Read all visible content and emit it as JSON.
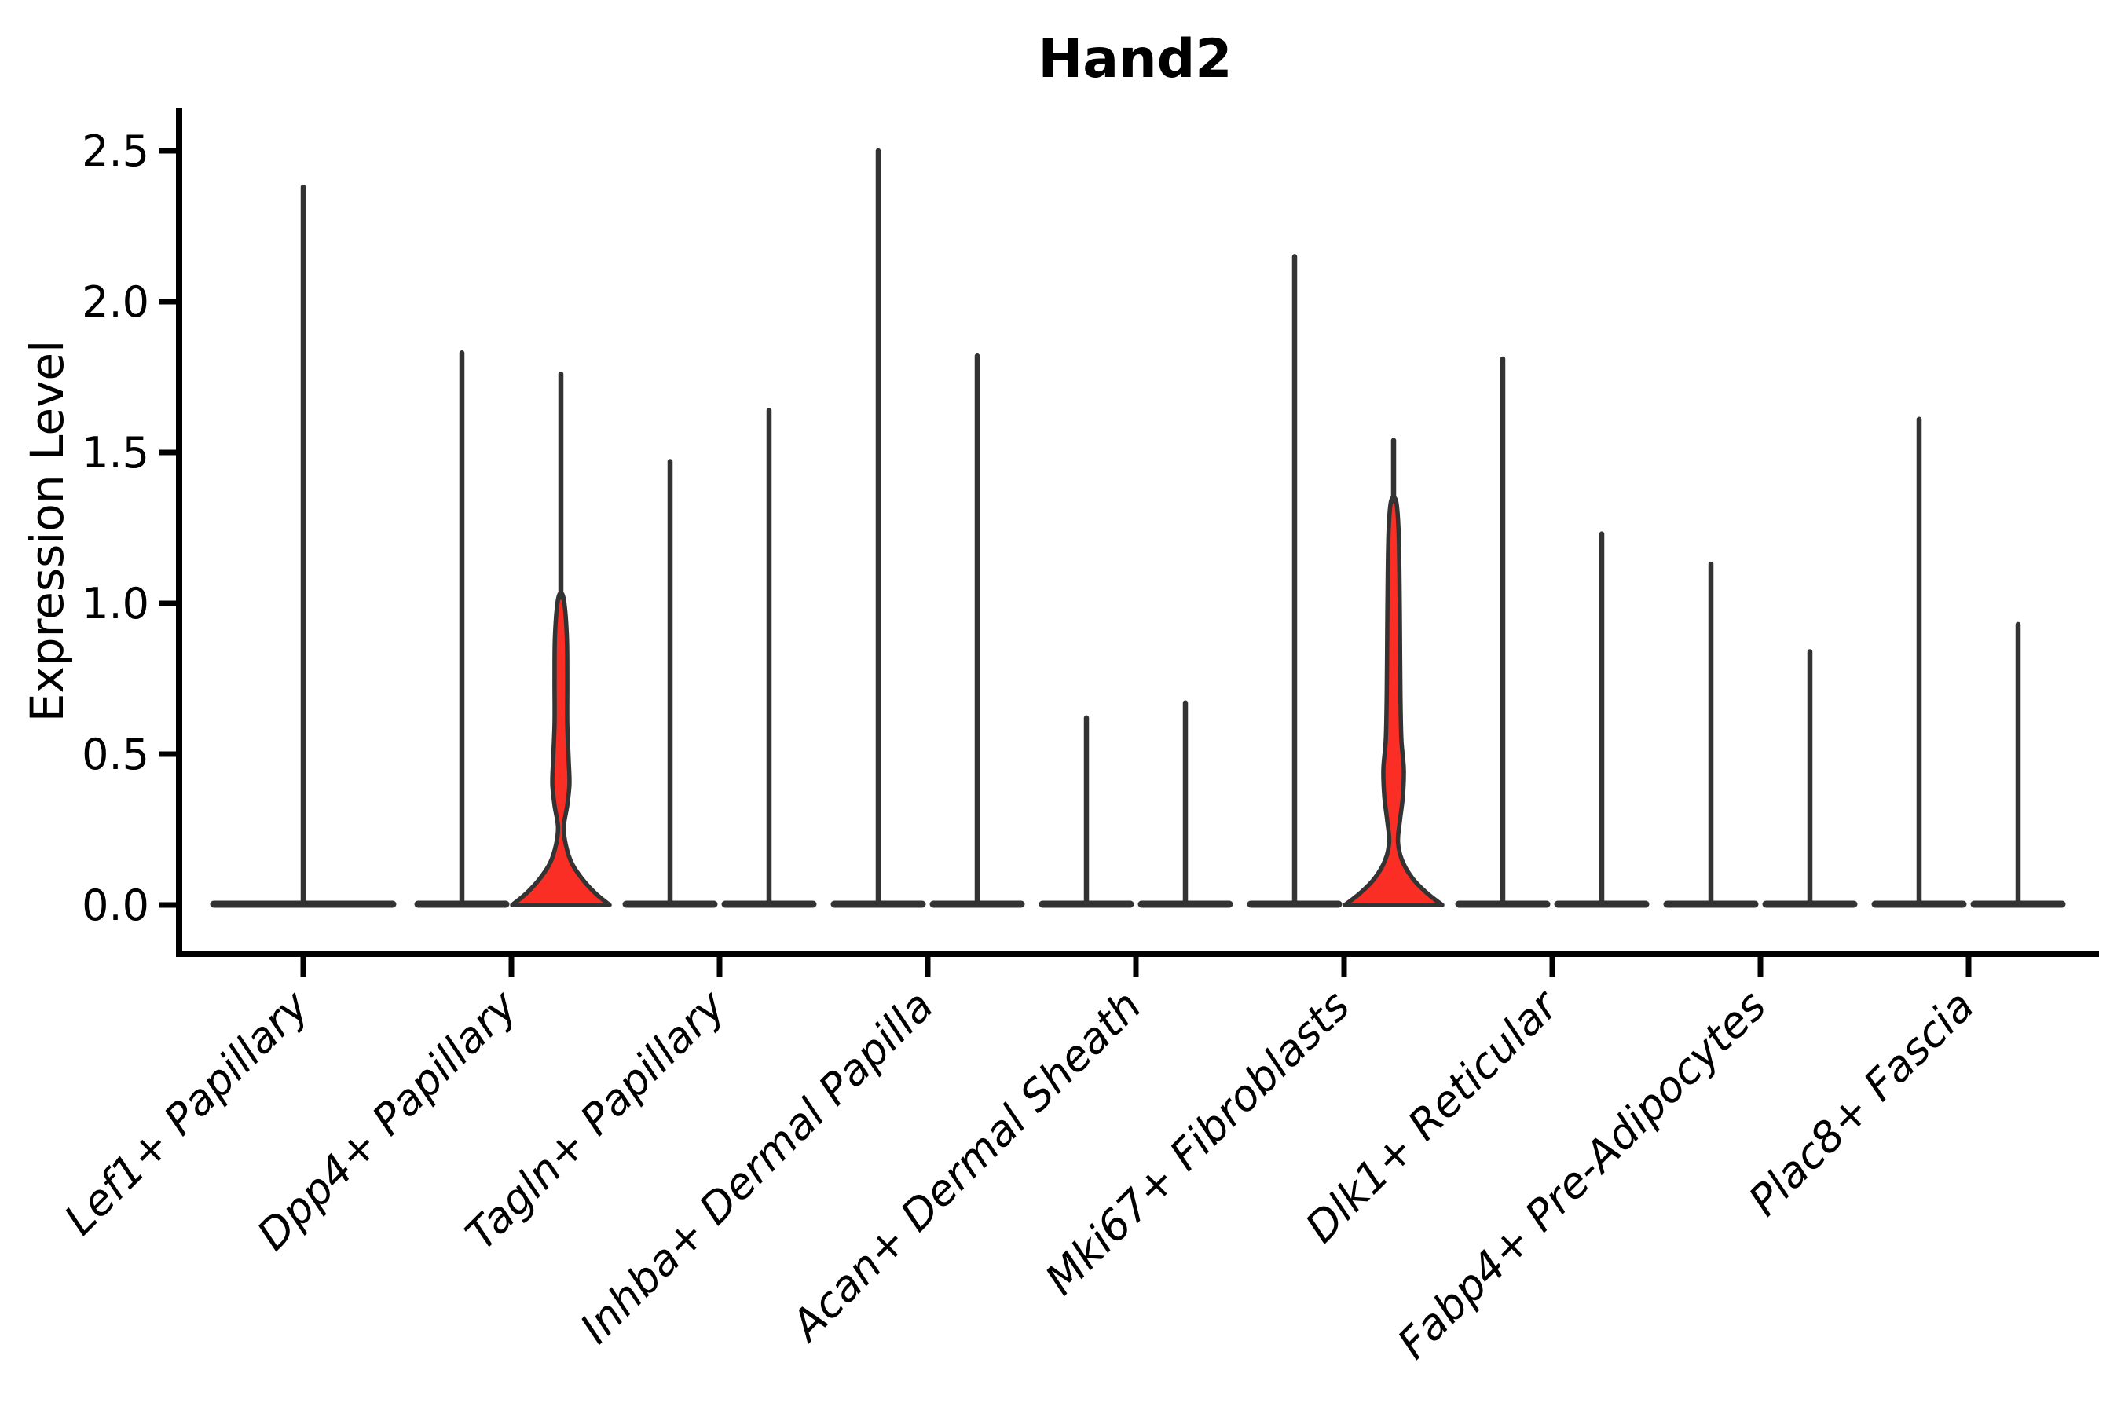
{
  "title": "Hand2",
  "colors": {
    "highlight_fill": "#fa2e24",
    "violin_outline": "#333333",
    "axis": "#000000",
    "background": "#ffffff"
  },
  "chart_data": {
    "type": "violin",
    "title": "Hand2",
    "xlabel": "",
    "ylabel": "Expression Level",
    "yticks": [
      "0.0",
      "0.5",
      "1.0",
      "1.5",
      "2.0",
      "2.5"
    ],
    "ytick_values": [
      0.0,
      0.5,
      1.0,
      1.5,
      2.0,
      2.5
    ],
    "ylim": [
      -0.16,
      2.64
    ],
    "grid": "off",
    "legend": "none",
    "categories": [
      "Lef1+ Papillary",
      "Dpp4+ Papillary",
      "Tagln+ Papillary",
      "Inhba+ Dermal Papilla",
      "Acan+ Dermal Sheath",
      "Mki67+ Fibroblasts",
      "Dlk1+ Reticular",
      "Fabp4+ Pre-Adipocytes",
      "Plac8+ Fascia"
    ],
    "description": "Violin plot of Hand2 expression; most violins collapse to a flat base at 0 with a thin density spike; the right-hand violins of Dpp4+ Papillary and Mki67+ Fibroblasts show visible red-filled density mass above 0.",
    "violins": [
      {
        "category_index": 0,
        "category": "Lef1+ Papillary",
        "position": "center",
        "max_expression": 2.38,
        "shape": "spike",
        "highlighted": false
      },
      {
        "category_index": 1,
        "category": "Dpp4+ Papillary",
        "position": "left",
        "max_expression": 1.83,
        "shape": "spike",
        "highlighted": false
      },
      {
        "category_index": 1,
        "category": "Dpp4+ Papillary",
        "position": "right",
        "max_expression": 1.76,
        "shape": "density",
        "highlighted": true,
        "density_top": 1.02,
        "density_profile": [
          [
            0,
            1
          ],
          [
            0.04,
            0.7
          ],
          [
            0.09,
            0.42
          ],
          [
            0.14,
            0.22
          ],
          [
            0.2,
            0.1
          ],
          [
            0.26,
            0.06
          ],
          [
            0.33,
            0.13
          ],
          [
            0.4,
            0.175
          ],
          [
            0.48,
            0.16
          ],
          [
            0.6,
            0.13
          ],
          [
            0.75,
            0.13
          ],
          [
            0.9,
            0.12
          ],
          [
            1.02,
            0.05
          ]
        ]
      },
      {
        "category_index": 2,
        "category": "Tagln+ Papillary",
        "position": "left",
        "max_expression": 1.47,
        "shape": "spike",
        "highlighted": false
      },
      {
        "category_index": 2,
        "category": "Tagln+ Papillary",
        "position": "right",
        "max_expression": 1.64,
        "shape": "spike",
        "highlighted": false
      },
      {
        "category_index": 3,
        "category": "Inhba+ Dermal Papilla",
        "position": "left",
        "max_expression": 2.5,
        "shape": "spike",
        "highlighted": false
      },
      {
        "category_index": 3,
        "category": "Inhba+ Dermal Papilla",
        "position": "right",
        "max_expression": 1.82,
        "shape": "spike",
        "highlighted": false
      },
      {
        "category_index": 4,
        "category": "Acan+ Dermal Sheath",
        "position": "left",
        "max_expression": 0.62,
        "shape": "spike",
        "highlighted": false
      },
      {
        "category_index": 4,
        "category": "Acan+ Dermal Sheath",
        "position": "right",
        "max_expression": 0.67,
        "shape": "spike",
        "highlighted": false
      },
      {
        "category_index": 5,
        "category": "Mki67+ Fibroblasts",
        "position": "left",
        "max_expression": 2.15,
        "shape": "spike",
        "highlighted": false
      },
      {
        "category_index": 5,
        "category": "Mki67+ Fibroblasts",
        "position": "right",
        "max_expression": 1.54,
        "shape": "density",
        "highlighted": true,
        "density_top": 1.34,
        "density_profile": [
          [
            0,
            1
          ],
          [
            0.04,
            0.68
          ],
          [
            0.09,
            0.38
          ],
          [
            0.15,
            0.17
          ],
          [
            0.21,
            0.09
          ],
          [
            0.28,
            0.13
          ],
          [
            0.36,
            0.19
          ],
          [
            0.45,
            0.21
          ],
          [
            0.55,
            0.16
          ],
          [
            0.7,
            0.14
          ],
          [
            0.9,
            0.13
          ],
          [
            1.1,
            0.12
          ],
          [
            1.25,
            0.1
          ],
          [
            1.34,
            0.05
          ]
        ]
      },
      {
        "category_index": 6,
        "category": "Dlk1+ Reticular",
        "position": "left",
        "max_expression": 1.81,
        "shape": "spike",
        "highlighted": false
      },
      {
        "category_index": 6,
        "category": "Dlk1+ Reticular",
        "position": "right",
        "max_expression": 1.23,
        "shape": "spike",
        "highlighted": false
      },
      {
        "category_index": 7,
        "category": "Fabp4+ Pre-Adipocytes",
        "position": "left",
        "max_expression": 1.13,
        "shape": "spike",
        "highlighted": false
      },
      {
        "category_index": 7,
        "category": "Fabp4+ Pre-Adipocytes",
        "position": "right",
        "max_expression": 0.84,
        "shape": "spike",
        "highlighted": false
      },
      {
        "category_index": 8,
        "category": "Plac8+ Fascia",
        "position": "left",
        "max_expression": 1.61,
        "shape": "spike",
        "highlighted": false
      },
      {
        "category_index": 8,
        "category": "Plac8+ Fascia",
        "position": "right",
        "max_expression": 0.93,
        "shape": "spike",
        "highlighted": false
      }
    ]
  }
}
